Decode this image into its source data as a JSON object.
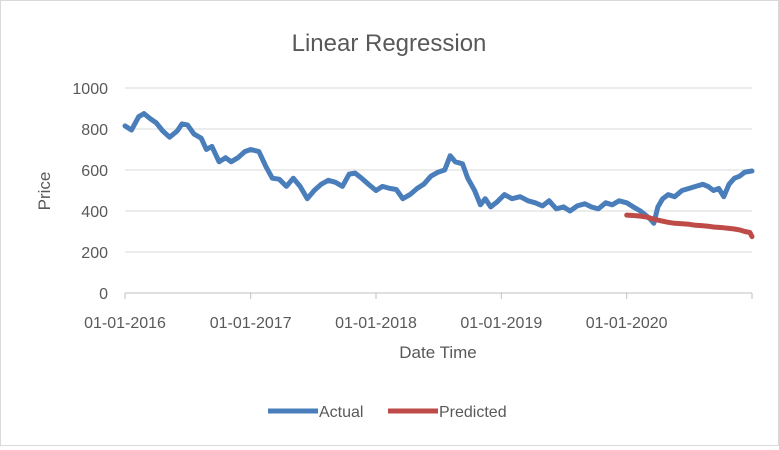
{
  "chart_data": {
    "type": "line",
    "title": "Linear Regression",
    "xlabel": "Date Time",
    "ylabel": "Price",
    "ylim": [
      0,
      1000
    ],
    "yticks": [
      "0",
      "200",
      "400",
      "600",
      "800",
      "1000"
    ],
    "xticks": [
      "01-01-2016",
      "01-01-2017",
      "01-01-2018",
      "01-01-2019",
      "01-01-2020"
    ],
    "xrange": [
      "2016-01-01",
      "2020-12-31"
    ],
    "grid": "horizontal",
    "legend_position": "bottom",
    "series": [
      {
        "name": "Actual",
        "color": "#4a7ebb",
        "x": [
          "2016-01-01",
          "2016-01-20",
          "2016-02-10",
          "2016-02-25",
          "2016-03-15",
          "2016-04-01",
          "2016-04-20",
          "2016-05-10",
          "2016-06-01",
          "2016-06-15",
          "2016-07-01",
          "2016-07-20",
          "2016-08-10",
          "2016-08-25",
          "2016-09-10",
          "2016-10-01",
          "2016-10-20",
          "2016-11-05",
          "2016-11-25",
          "2016-12-15",
          "2017-01-01",
          "2017-01-25",
          "2017-02-15",
          "2017-03-05",
          "2017-03-25",
          "2017-04-15",
          "2017-05-05",
          "2017-05-25",
          "2017-06-15",
          "2017-07-05",
          "2017-07-25",
          "2017-08-15",
          "2017-09-05",
          "2017-09-25",
          "2017-10-15",
          "2017-11-01",
          "2017-11-20",
          "2017-12-10",
          "2018-01-01",
          "2018-01-20",
          "2018-02-10",
          "2018-03-01",
          "2018-03-20",
          "2018-04-10",
          "2018-05-01",
          "2018-05-20",
          "2018-06-10",
          "2018-07-01",
          "2018-07-20",
          "2018-08-05",
          "2018-08-20",
          "2018-09-10",
          "2018-09-25",
          "2018-10-15",
          "2018-11-01",
          "2018-11-15",
          "2018-12-01",
          "2018-12-20",
          "2019-01-10",
          "2019-02-01",
          "2019-02-25",
          "2019-03-20",
          "2019-04-10",
          "2019-05-01",
          "2019-05-20",
          "2019-06-10",
          "2019-07-01",
          "2019-07-20",
          "2019-08-10",
          "2019-09-01",
          "2019-09-20",
          "2019-10-10",
          "2019-11-01",
          "2019-11-20",
          "2019-12-10",
          "2020-01-01",
          "2020-01-20",
          "2020-02-10",
          "2020-02-25",
          "2020-03-10",
          "2020-03-20",
          "2020-04-01",
          "2020-04-15",
          "2020-05-01",
          "2020-05-20",
          "2020-06-10",
          "2020-07-01",
          "2020-07-20",
          "2020-08-10",
          "2020-08-25",
          "2020-09-10",
          "2020-09-25",
          "2020-10-10",
          "2020-10-25",
          "2020-11-10",
          "2020-11-25",
          "2020-12-10",
          "2020-12-31"
        ],
        "values": [
          815,
          795,
          860,
          875,
          850,
          830,
          790,
          760,
          790,
          825,
          820,
          775,
          755,
          700,
          715,
          640,
          660,
          640,
          660,
          690,
          700,
          690,
          615,
          560,
          555,
          520,
          560,
          520,
          460,
          500,
          530,
          550,
          540,
          520,
          580,
          585,
          560,
          530,
          500,
          520,
          510,
          505,
          460,
          480,
          510,
          530,
          570,
          590,
          600,
          670,
          640,
          630,
          560,
          500,
          430,
          460,
          420,
          445,
          480,
          460,
          470,
          450,
          440,
          425,
          450,
          410,
          420,
          400,
          425,
          435,
          420,
          410,
          440,
          430,
          450,
          440,
          420,
          400,
          380,
          360,
          340,
          420,
          460,
          480,
          470,
          500,
          510,
          520,
          530,
          520,
          500,
          510,
          470,
          530,
          560,
          570,
          590,
          595
        ]
      },
      {
        "name": "Predicted",
        "color": "#be4b48",
        "x": [
          "2020-01-01",
          "2020-01-20",
          "2020-02-10",
          "2020-03-01",
          "2020-03-20",
          "2020-04-10",
          "2020-05-01",
          "2020-05-20",
          "2020-06-10",
          "2020-07-01",
          "2020-07-20",
          "2020-08-10",
          "2020-08-25",
          "2020-09-10",
          "2020-09-25",
          "2020-10-10",
          "2020-10-25",
          "2020-11-10",
          "2020-11-25",
          "2020-12-10",
          "2020-12-25",
          "2020-12-31"
        ],
        "values": [
          380,
          378,
          375,
          370,
          360,
          352,
          345,
          340,
          338,
          335,
          330,
          328,
          326,
          322,
          320,
          318,
          315,
          312,
          308,
          300,
          295,
          275
        ]
      }
    ]
  }
}
